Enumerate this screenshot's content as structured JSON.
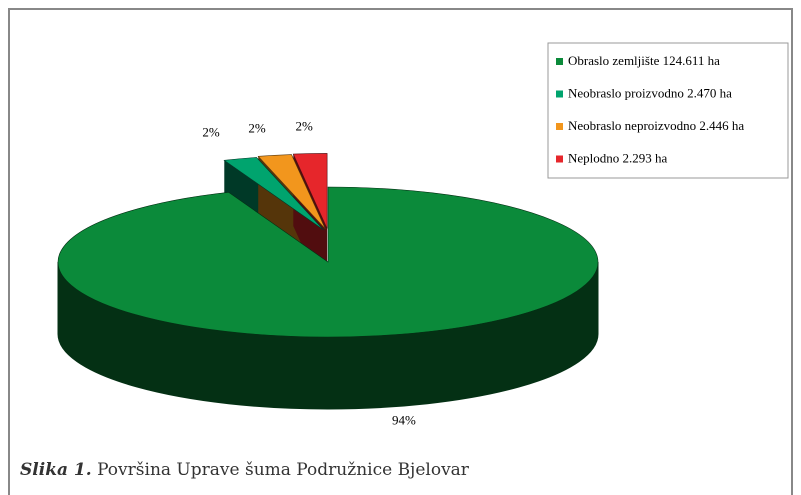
{
  "chart_data": {
    "type": "pie3d",
    "categories": [
      "Obraslo zemljište 124.611 ha",
      "Neobraslo proizvodno 2.470 ha",
      "Neobraslo neproizvodno 2.446 ha",
      "Neplodno 2.293 ha"
    ],
    "values": [
      94,
      2,
      2,
      2
    ],
    "value_labels": [
      "94%",
      "2%",
      "2%",
      "2%"
    ],
    "colors": [
      "#0b8a3a",
      "#00a46e",
      "#f2961d",
      "#e6262b"
    ],
    "legend": "top-right"
  },
  "caption": {
    "label": "Slika 1.",
    "text": "Površina Uprave šuma Podružnice Bjelovar"
  }
}
